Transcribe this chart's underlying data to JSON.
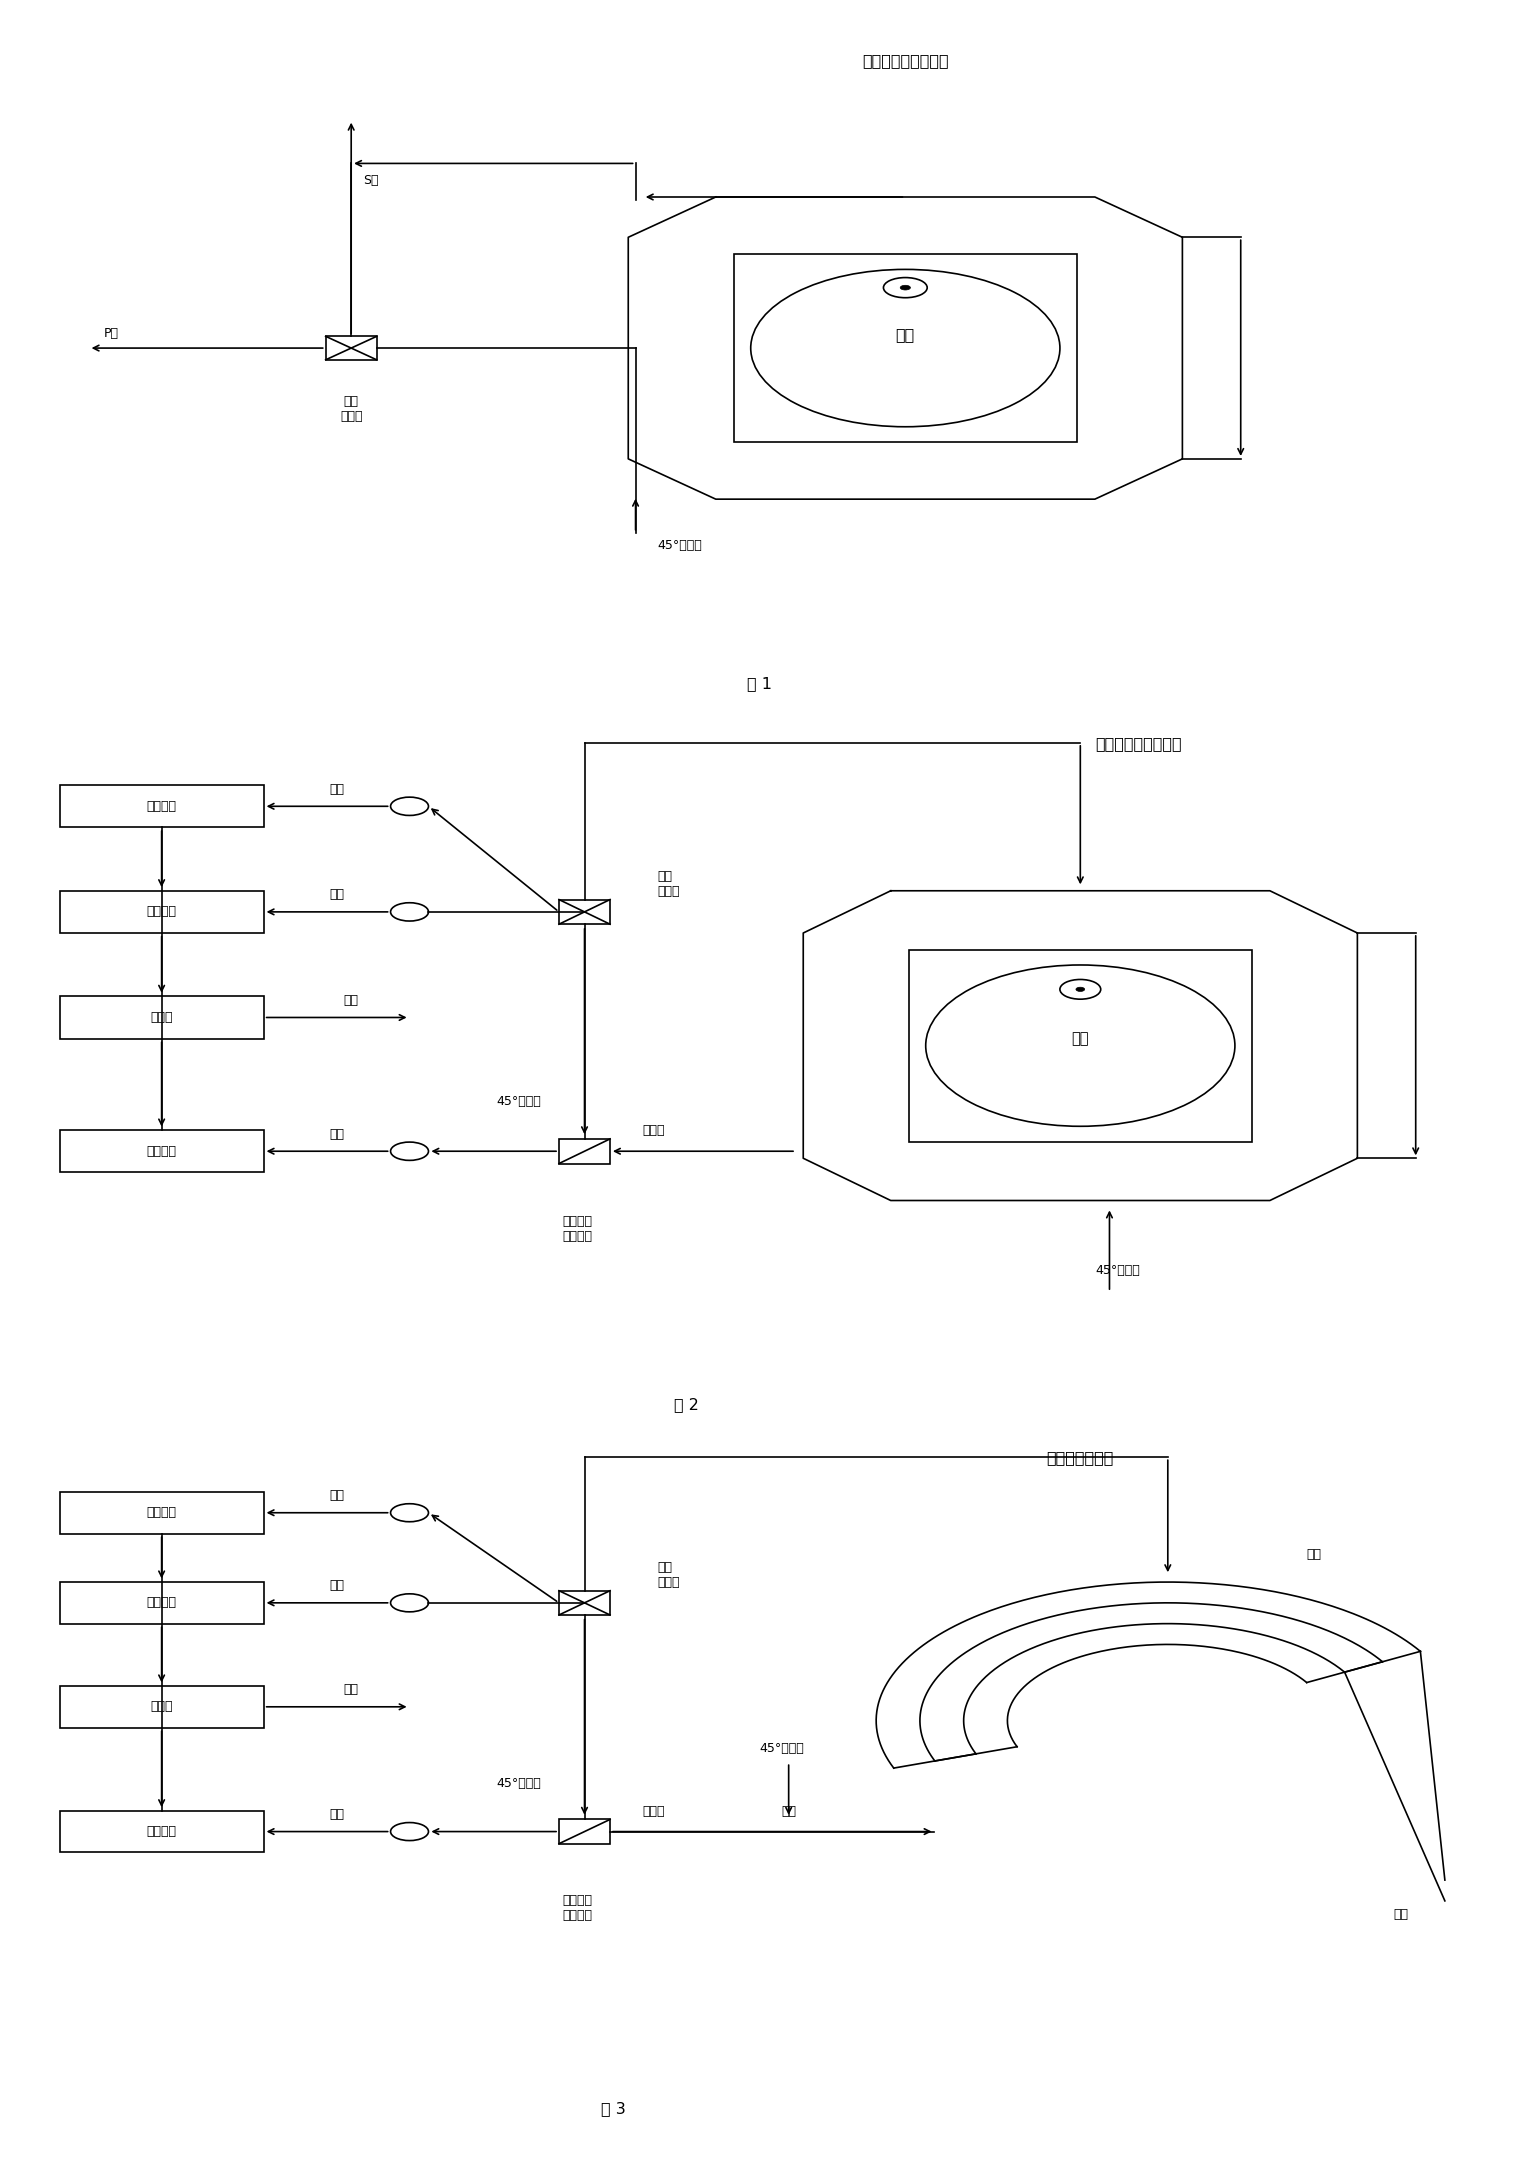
{
  "bg_color": "#ffffff",
  "fig1": {
    "title": "光学玻璃电流传感头",
    "caption": "图 1",
    "sensor_label": "电流",
    "p_light": "P光",
    "s_light": "S光",
    "pbs_label": "偏振\n分束器",
    "incident_label": "45°入射光"
  },
  "fig2": {
    "title": "光学玻璃电流传感头",
    "caption": "图 2",
    "sensor_label": "电流",
    "incident_label": "45°入射光",
    "exit_label": "出射光",
    "pbs_label": "偏振\n分束器",
    "npbs_label": "无偏振效\n应分束器",
    "analyzer_label": "45°检偏器",
    "fiber_label": "光纤",
    "current_label": "电流",
    "box1": "光电转换",
    "box2": "光电转换",
    "box3": "计算机",
    "box4": "光电转换"
  },
  "fig3": {
    "title": "光纤电流传感头",
    "caption": "图 3",
    "sensor_label": "光纤电流传感头",
    "fiber_label2": "光纤",
    "current_label2": "电流",
    "incident_label": "45°入射光",
    "exit_label": "出射光",
    "fiber_label": "光纤",
    "pbs_label": "偏振\n分束器",
    "npbs_label": "无偏振效\n应分束器",
    "analyzer_label": "45°检偏器",
    "current_label": "电流",
    "box1": "光电转换",
    "box2": "光电转换",
    "box3": "计算机",
    "box4": "光电转换"
  }
}
